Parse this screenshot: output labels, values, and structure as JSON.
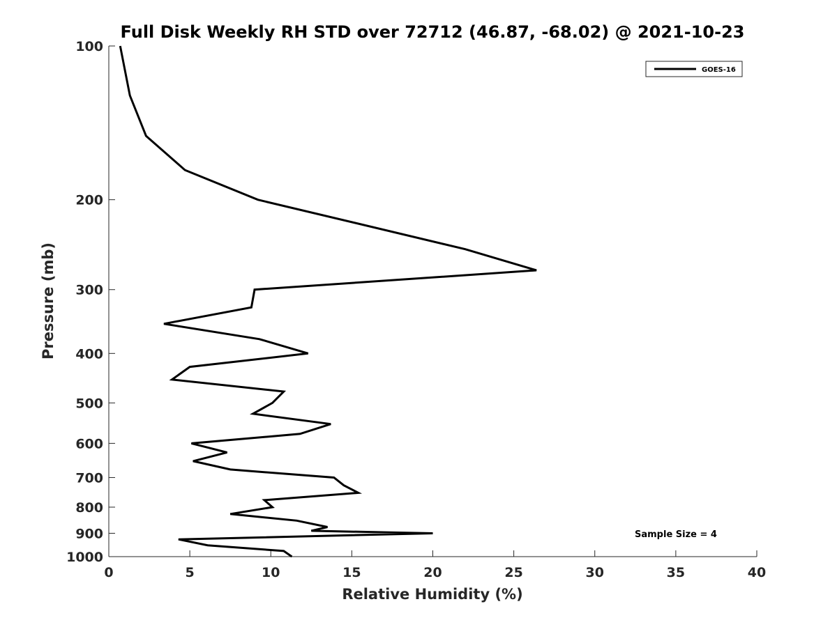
{
  "chart_data": {
    "type": "line",
    "title": "Full Disk Weekly RH STD over 72712 (46.87, -68.02) @ 2021-10-23",
    "xlabel": "Relative Humidity (%)",
    "ylabel": "Pressure (mb)",
    "xlim": [
      0,
      40
    ],
    "ylim": [
      100,
      1000
    ],
    "y_scale": "log",
    "y_reversed": true,
    "x_ticks": [
      0,
      5,
      10,
      15,
      20,
      25,
      30,
      35,
      40
    ],
    "y_ticks": [
      100,
      200,
      300,
      400,
      500,
      600,
      700,
      800,
      900,
      1000
    ],
    "grid": false,
    "legend_position": "top-right",
    "line_color": "#000000",
    "annotation": "Sample Size = 4",
    "series": [
      {
        "name": "GOES-16",
        "points": [
          {
            "x": 0.7,
            "y": 100
          },
          {
            "x": 1.3,
            "y": 125
          },
          {
            "x": 2.3,
            "y": 150
          },
          {
            "x": 4.7,
            "y": 175
          },
          {
            "x": 9.2,
            "y": 200
          },
          {
            "x": 22.0,
            "y": 250
          },
          {
            "x": 26.4,
            "y": 275
          },
          {
            "x": 9.0,
            "y": 300
          },
          {
            "x": 8.8,
            "y": 325
          },
          {
            "x": 3.4,
            "y": 350
          },
          {
            "x": 9.3,
            "y": 375
          },
          {
            "x": 12.3,
            "y": 400
          },
          {
            "x": 5.0,
            "y": 425
          },
          {
            "x": 3.9,
            "y": 450
          },
          {
            "x": 10.8,
            "y": 475
          },
          {
            "x": 10.1,
            "y": 500
          },
          {
            "x": 8.9,
            "y": 525
          },
          {
            "x": 13.7,
            "y": 550
          },
          {
            "x": 11.8,
            "y": 575
          },
          {
            "x": 5.1,
            "y": 600
          },
          {
            "x": 7.3,
            "y": 625
          },
          {
            "x": 5.2,
            "y": 650
          },
          {
            "x": 7.5,
            "y": 675
          },
          {
            "x": 13.9,
            "y": 700
          },
          {
            "x": 14.5,
            "y": 725
          },
          {
            "x": 15.4,
            "y": 750
          },
          {
            "x": 9.6,
            "y": 775
          },
          {
            "x": 10.1,
            "y": 800
          },
          {
            "x": 7.5,
            "y": 825
          },
          {
            "x": 11.6,
            "y": 850
          },
          {
            "x": 13.5,
            "y": 875
          },
          {
            "x": 12.5,
            "y": 890
          },
          {
            "x": 20.0,
            "y": 900
          },
          {
            "x": 4.3,
            "y": 925
          },
          {
            "x": 6.1,
            "y": 950
          },
          {
            "x": 10.8,
            "y": 975
          },
          {
            "x": 11.3,
            "y": 1000
          }
        ]
      }
    ],
    "chart_data_note": ""
  }
}
